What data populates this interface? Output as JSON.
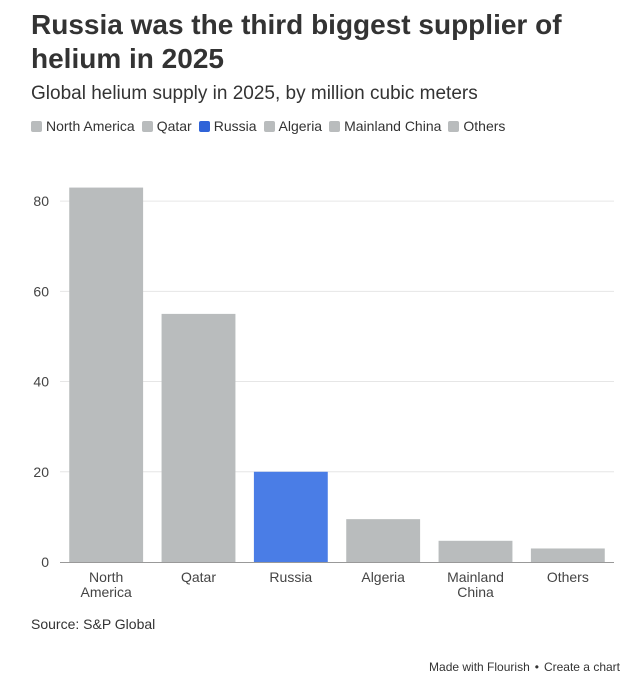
{
  "header": {
    "title": "Russia was the third biggest supplier of helium in 2025",
    "subtitle": "Global helium supply in 2025, by million cubic meters"
  },
  "colors": {
    "default_bar": "#b9bcbd",
    "highlight_bar": "#4a7de6",
    "legend_highlight": "#2f63d8",
    "grid": "#e6e6e6",
    "axis": "#999999"
  },
  "legend": [
    {
      "label": "North America",
      "color": "#b9bcbd"
    },
    {
      "label": "Qatar",
      "color": "#b9bcbd"
    },
    {
      "label": "Russia",
      "color": "#2f63d8"
    },
    {
      "label": "Algeria",
      "color": "#b9bcbd"
    },
    {
      "label": "Mainland China",
      "color": "#b9bcbd"
    },
    {
      "label": "Others",
      "color": "#b9bcbd"
    }
  ],
  "chart_data": {
    "type": "bar",
    "title": "Russia was the third biggest supplier of helium in 2025",
    "subtitle": "Global helium supply in 2025, by million cubic meters",
    "categories": [
      "North America",
      "Qatar",
      "Russia",
      "Algeria",
      "Mainland China",
      "Others"
    ],
    "category_lines": [
      [
        "North",
        "America"
      ],
      [
        "Qatar"
      ],
      [
        "Russia"
      ],
      [
        "Algeria"
      ],
      [
        "Mainland",
        "China"
      ],
      [
        "Others"
      ]
    ],
    "values": [
      83,
      55,
      20,
      9.5,
      4.7,
      3
    ],
    "highlight": "Russia",
    "xlabel": "",
    "ylabel": "",
    "ylim": [
      0,
      90
    ],
    "yticks": [
      0,
      20,
      40,
      60,
      80
    ],
    "grid": true,
    "legend_position": "top"
  },
  "source": "Source: S&P Global",
  "footer": {
    "made_with": "Made with Flourish",
    "separator": "•",
    "create": "Create a chart"
  }
}
